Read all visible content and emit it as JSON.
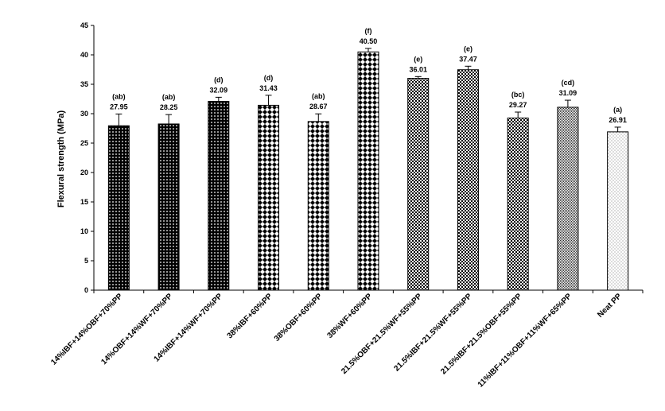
{
  "chart_data": {
    "type": "bar",
    "title": "",
    "xlabel": "",
    "ylabel": "Flexural strength (MPa)",
    "ylim": [
      0,
      45
    ],
    "ytick_step": 5,
    "grid": false,
    "legend": "none",
    "categories": [
      "14%IBF+14%OBF+70%PP",
      "14%OBF+14%WF+70%PP",
      "14%IBF+14%WF+70%PP",
      "38%IBF+60%PP",
      "38%OBF+60%PP",
      "38%WF+60%PP",
      "21.5%OBF+21.5%WF+55%PP",
      "21.5%IBF+21.5%WF+55%PP",
      "21.5%IBF+21.5%OBF+55%PP",
      "11%IBF+11%OBF+11%WF+65%PP",
      "Neat PP"
    ],
    "values": [
      27.95,
      28.25,
      32.09,
      31.43,
      28.67,
      40.5,
      36.01,
      37.47,
      29.27,
      31.09,
      26.91
    ],
    "value_labels": [
      "27.95",
      "28.25",
      "32.09",
      "31.43",
      "28.67",
      "40.50",
      "36.01",
      "37.47",
      "29.27",
      "31.09",
      "26.91"
    ],
    "errors": [
      2.0,
      1.6,
      0.7,
      1.7,
      1.3,
      0.6,
      0.3,
      0.6,
      1.0,
      1.2,
      0.8
    ],
    "groups": [
      "(ab)",
      "(ab)",
      "(d)",
      "(d)",
      "(ab)",
      "(f)",
      "(e)",
      "(e)",
      "(bc)",
      "(cd)",
      "(a)"
    ],
    "patterns": [
      "dots-white",
      "dots-white",
      "dots-white",
      "diamond",
      "diamond",
      "diamond",
      "check",
      "check",
      "check",
      "fine-grid",
      "sparse-dots"
    ]
  }
}
